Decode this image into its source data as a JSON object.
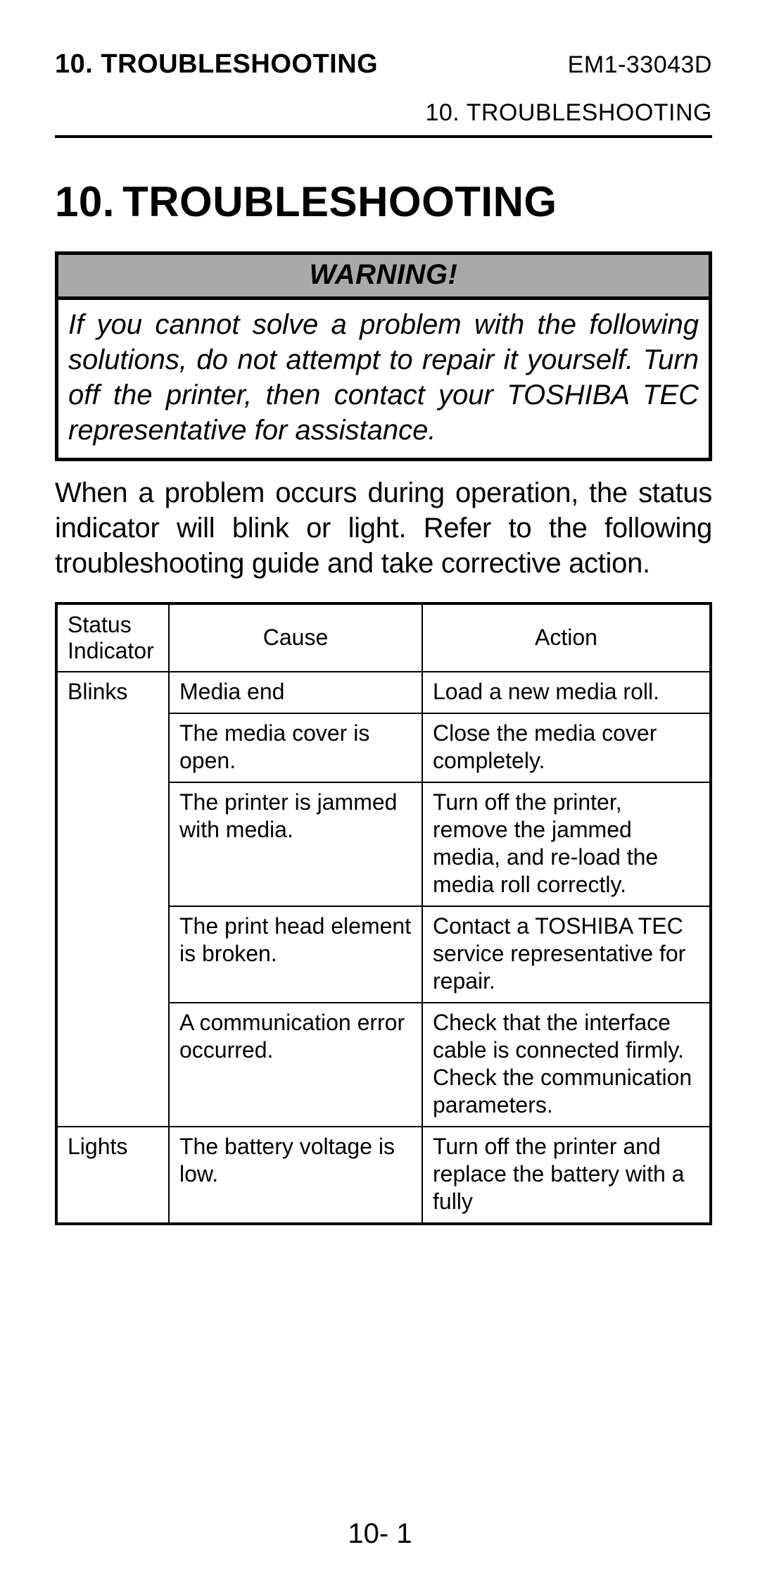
{
  "header": {
    "left": "10. TROUBLESHOOTING",
    "right": "EM1-33043D",
    "sub": "10. TROUBLESHOOTING"
  },
  "title": "10. TROUBLESHOOTING",
  "warning": {
    "label": "WARNING!",
    "body": "If you cannot solve a problem with the following solutions, do not attempt to repair it yourself.  Turn off the printer, then contact your TOSHIBA TEC representative for assistance."
  },
  "intro": "When a problem occurs during operation, the status indicator will blink or light.  Refer to the following troubleshooting guide and take corrective action.",
  "table": {
    "columns": {
      "status": "Status Indicator",
      "cause": "Cause",
      "action": "Action"
    },
    "groups": [
      {
        "status": "Blinks",
        "rows": [
          {
            "cause": "Media end",
            "action": "Load a new media roll.",
            "action_small": false
          },
          {
            "cause": "The media cover is open.",
            "action": "Close the media cover completely.",
            "action_small": false
          },
          {
            "cause": "The printer is jammed with media.",
            "action": "Turn off the printer, remove the jammed media, and re-load the media roll correctly.",
            "action_small": false
          },
          {
            "cause": "The print head element is broken.",
            "action": "Contact a TOSHIBA TEC service representative for repair.",
            "action_small": true
          },
          {
            "cause": "A communication error occurred.",
            "action": "Check that the interface cable is connected firmly. Check the communication parameters.",
            "action_small": false
          }
        ]
      },
      {
        "status": "Lights",
        "rows": [
          {
            "cause": "The battery voltage is low.",
            "action": "Turn off the printer and replace the battery with a fully",
            "action_small": false
          }
        ]
      }
    ]
  },
  "page_number": "10- 1",
  "colors": {
    "background": "#ffffff",
    "text": "#000000",
    "warning_header_bg": "#a9a9a9",
    "border": "#000000"
  }
}
